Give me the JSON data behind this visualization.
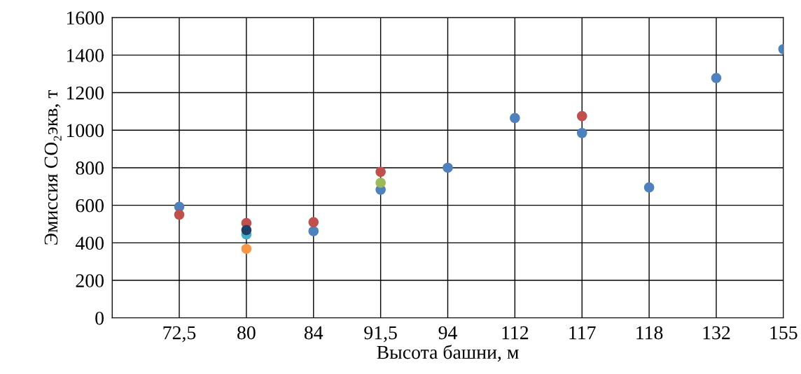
{
  "chart_data": {
    "type": "scatter",
    "xlabel": "Высота башни, м",
    "ylabel": "Эмиссия CO₂экв, т",
    "categories": [
      null,
      "72,5",
      "80",
      "84",
      "91,5",
      "94",
      "112",
      "117",
      "118",
      "132",
      "155"
    ],
    "ylim": [
      0,
      1600
    ],
    "yticks": [
      0,
      200,
      400,
      600,
      800,
      1000,
      1200,
      1400,
      1600
    ],
    "grid": true,
    "marker": "circle",
    "series": [
      {
        "color": "#4f81bd",
        "values": [
          null,
          592,
          null,
          462,
          683,
          800,
          1065,
          985,
          695,
          1278,
          1432
        ]
      },
      {
        "color": "#c0504d",
        "values": [
          null,
          550,
          505,
          510,
          778,
          null,
          null,
          1075,
          null,
          null,
          null
        ]
      },
      {
        "color": "#9bbb59",
        "values": [
          null,
          null,
          null,
          null,
          720,
          null,
          null,
          null,
          null,
          null,
          null
        ]
      },
      {
        "color": "#4bacc6",
        "values": [
          null,
          null,
          445,
          null,
          null,
          null,
          null,
          null,
          null,
          null,
          null
        ]
      },
      {
        "color": "#f79646",
        "values": [
          null,
          null,
          368,
          null,
          null,
          null,
          null,
          null,
          null,
          null,
          null
        ]
      },
      {
        "color": "#1f3f6b",
        "values": [
          null,
          null,
          468,
          null,
          null,
          null,
          null,
          null,
          null,
          null,
          null
        ]
      }
    ]
  }
}
